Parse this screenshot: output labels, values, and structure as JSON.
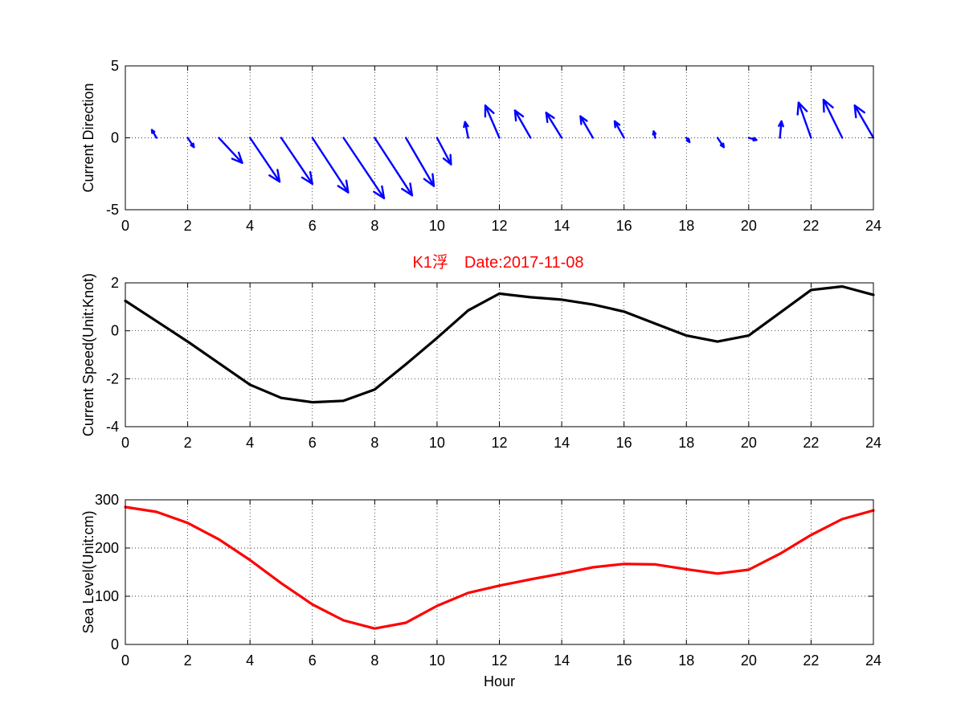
{
  "figure": {
    "title": "K1浮　Date:2017-11-08",
    "title_color": "#ff0000"
  },
  "chart_data": [
    {
      "type": "quiver",
      "ylabel": "Current Direction",
      "xlabel": "",
      "xlim": [
        0,
        24
      ],
      "ylim": [
        -5,
        5
      ],
      "xticks": [
        "0",
        "2",
        "4",
        "6",
        "8",
        "10",
        "12",
        "14",
        "16",
        "18",
        "20",
        "22",
        "24"
      ],
      "yticks": [
        "-5",
        "0",
        "5"
      ],
      "grid": true,
      "color": "#0000ff",
      "x": [
        1,
        2,
        3,
        4,
        5,
        6,
        7,
        8,
        9,
        10,
        11,
        12,
        13,
        14,
        15,
        16,
        17,
        18,
        19,
        20,
        21,
        22,
        23,
        24
      ],
      "u": [
        -0.15,
        0.2,
        0.75,
        0.95,
        1.0,
        1.15,
        1.3,
        1.2,
        0.9,
        0.45,
        -0.1,
        -0.45,
        -0.5,
        -0.5,
        -0.4,
        -0.3,
        -0.05,
        0.1,
        0.2,
        0.25,
        0.05,
        -0.4,
        -0.6,
        -0.6
      ],
      "v": [
        0.55,
        -0.65,
        -1.75,
        -3.05,
        -3.2,
        -3.8,
        -4.2,
        -4.0,
        -3.35,
        -1.85,
        1.1,
        2.25,
        1.9,
        1.75,
        1.5,
        1.15,
        0.45,
        -0.3,
        -0.65,
        -0.15,
        1.15,
        2.45,
        2.65,
        2.25
      ]
    },
    {
      "type": "line",
      "ylabel": "Current Speed(Unit:Knot)",
      "xlabel": "",
      "xlim": [
        0,
        24
      ],
      "ylim": [
        -4,
        2
      ],
      "xticks": [
        "0",
        "2",
        "4",
        "6",
        "8",
        "10",
        "12",
        "14",
        "16",
        "18",
        "20",
        "22",
        "24"
      ],
      "yticks": [
        "-4",
        "-2",
        "0",
        "2"
      ],
      "grid": true,
      "color": "#000000",
      "x": [
        0,
        1,
        2,
        3,
        4,
        5,
        6,
        7,
        8,
        9,
        10,
        11,
        12,
        13,
        14,
        15,
        16,
        17,
        18,
        19,
        20,
        21,
        22,
        23,
        24
      ],
      "values": [
        1.25,
        0.4,
        -0.45,
        -1.35,
        -2.25,
        -2.8,
        -2.98,
        -2.92,
        -2.45,
        -1.4,
        -0.3,
        0.85,
        1.55,
        1.4,
        1.3,
        1.1,
        0.8,
        0.3,
        -0.2,
        -0.45,
        -0.2,
        0.75,
        1.7,
        1.85,
        1.5
      ]
    },
    {
      "type": "line",
      "ylabel": "Sea Level(Unit:cm)",
      "xlabel": "Hour",
      "xlim": [
        0,
        24
      ],
      "ylim": [
        0,
        300
      ],
      "xticks": [
        "0",
        "2",
        "4",
        "6",
        "8",
        "10",
        "12",
        "14",
        "16",
        "18",
        "20",
        "22",
        "24"
      ],
      "yticks": [
        "0",
        "100",
        "200",
        "300"
      ],
      "grid": true,
      "color": "#ff0000",
      "x": [
        0,
        1,
        2,
        3,
        4,
        5,
        6,
        7,
        8,
        9,
        10,
        11,
        12,
        13,
        14,
        15,
        16,
        17,
        18,
        19,
        20,
        21,
        22,
        23,
        24
      ],
      "values": [
        285,
        275,
        252,
        218,
        175,
        127,
        83,
        50,
        33,
        45,
        80,
        107,
        122,
        135,
        147,
        160,
        167,
        166,
        156,
        147,
        155,
        188,
        227,
        260,
        278
      ]
    }
  ]
}
